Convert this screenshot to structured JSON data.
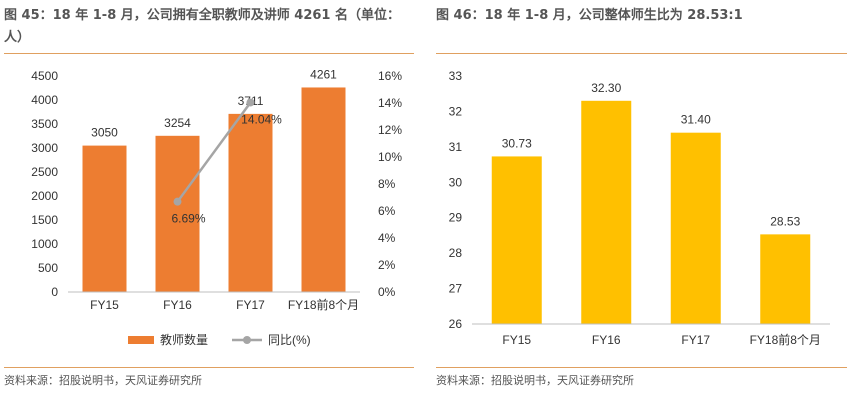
{
  "chart_data": [
    {
      "type": "bar",
      "title": "图 45：18 年 1-8 月，公司拥有全职教师及讲师 4261 名（单位：人）",
      "categories": [
        "FY15",
        "FY16",
        "FY17",
        "FY18前8个月"
      ],
      "series": [
        {
          "name": "教师数量",
          "type": "bar",
          "axis": "left",
          "values": [
            3050,
            3254,
            3711,
            4261
          ],
          "color": "#ED7D31"
        },
        {
          "name": "同比(%)",
          "type": "line",
          "axis": "right",
          "values": [
            null,
            6.69,
            14.04,
            null
          ],
          "color": "#A5A5A5"
        }
      ],
      "data_labels_bar": [
        "3050",
        "3254",
        "3711",
        "4261"
      ],
      "data_labels_line": [
        "",
        "6.69%",
        "14.04%",
        ""
      ],
      "ylim": [
        0,
        4500
      ],
      "yticks": [
        "4500",
        "4000",
        "3500",
        "3000",
        "2500",
        "2000",
        "1500",
        "1000",
        "500",
        "0"
      ],
      "y2lim": [
        0,
        16
      ],
      "y2ticks": [
        "16%",
        "14%",
        "12%",
        "10%",
        "8%",
        "6%",
        "4%",
        "2%",
        "0%"
      ],
      "legend": "bottom",
      "source": "资料来源：招股说明书，天风证券研究所"
    },
    {
      "type": "bar",
      "title": "图 46：18 年 1-8 月，公司整体师生比为 28.53:1",
      "categories": [
        "FY15",
        "FY16",
        "FY17",
        "FY18前8个月"
      ],
      "series": [
        {
          "values": [
            30.73,
            32.3,
            31.4,
            28.53
          ],
          "color": "#FFC000"
        }
      ],
      "data_labels_bar": [
        "30.73",
        "32.30",
        "31.40",
        "28.53"
      ],
      "ylim": [
        26,
        33
      ],
      "yticks": [
        "33",
        "32",
        "31",
        "30",
        "29",
        "28",
        "27",
        "26"
      ],
      "source": "资料来源：招股说明书，天风证券研究所"
    }
  ]
}
